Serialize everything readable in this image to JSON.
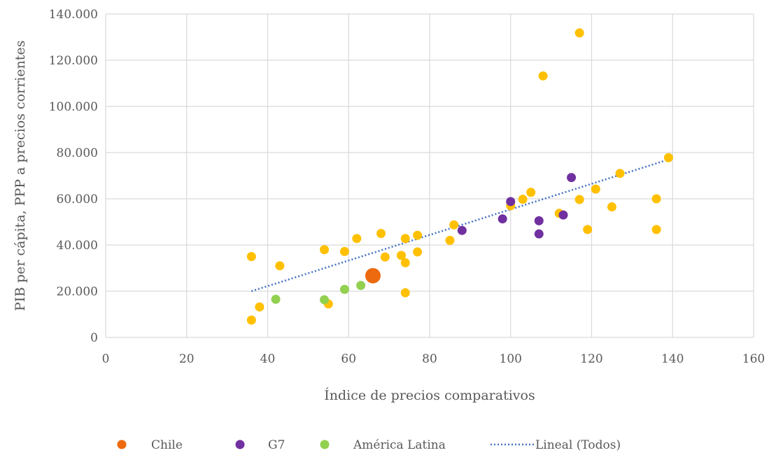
{
  "chart_data": {
    "type": "scatter",
    "title": "",
    "xlabel": "Índice de precios comparativos",
    "ylabel": "PIB per cápita, PPP a precios corrientes",
    "xlim": [
      0,
      160
    ],
    "ylim": [
      0,
      140000
    ],
    "x_ticks": [
      0,
      20,
      40,
      60,
      80,
      100,
      120,
      140,
      160
    ],
    "x_tick_labels": [
      "0",
      "20",
      "40",
      "60",
      "80",
      "100",
      "120",
      "140",
      "160"
    ],
    "y_ticks": [
      0,
      20000,
      40000,
      60000,
      80000,
      100000,
      120000,
      140000
    ],
    "y_tick_labels": [
      "0",
      "20.000",
      "40.000",
      "60.000",
      "80.000",
      "100.000",
      "120.000",
      "140.000"
    ],
    "grid": true,
    "legend_position": "bottom",
    "colors": {
      "todos": "#FFC000",
      "chile": "#ED6A0E",
      "g7": "#7030A0",
      "latam": "#92D050",
      "trend": "#4472C4"
    },
    "series": [
      {
        "key": "todos",
        "name": "",
        "color": "#FFC000",
        "points": [
          [
            36,
            35000
          ],
          [
            36,
            7500
          ],
          [
            38,
            13200
          ],
          [
            43,
            31000
          ],
          [
            54,
            38000
          ],
          [
            55,
            14500
          ],
          [
            59,
            37200
          ],
          [
            62,
            42800
          ],
          [
            68,
            45000
          ],
          [
            69,
            34800
          ],
          [
            73,
            35500
          ],
          [
            74,
            42800
          ],
          [
            74,
            32300
          ],
          [
            74,
            19300
          ],
          [
            77,
            44200
          ],
          [
            77,
            37000
          ],
          [
            85,
            42000
          ],
          [
            86,
            48700
          ],
          [
            100,
            57000
          ],
          [
            103,
            59800
          ],
          [
            105,
            62800
          ],
          [
            108,
            113200
          ],
          [
            112,
            53700
          ],
          [
            117,
            131800
          ],
          [
            117,
            59700
          ],
          [
            119,
            46700
          ],
          [
            121,
            64200
          ],
          [
            125,
            56500
          ],
          [
            127,
            71000
          ],
          [
            136,
            60000
          ],
          [
            136,
            46700
          ],
          [
            139,
            77800
          ]
        ]
      },
      {
        "key": "g7",
        "name": "G7",
        "color": "#7030A0",
        "points": [
          [
            88,
            46300
          ],
          [
            98,
            51300
          ],
          [
            100,
            58800
          ],
          [
            107,
            50500
          ],
          [
            107,
            44800
          ],
          [
            113,
            53000
          ],
          [
            115,
            69200
          ]
        ]
      },
      {
        "key": "latam",
        "name": "América Latina",
        "color": "#92D050",
        "points": [
          [
            42,
            16500
          ],
          [
            54,
            16300
          ],
          [
            59,
            20800
          ],
          [
            63,
            22500
          ]
        ]
      },
      {
        "key": "chile",
        "name": "Chile",
        "color": "#ED6A0E",
        "points": [
          [
            66,
            26700
          ]
        ]
      }
    ],
    "trendline": {
      "name": "Lineal (Todos)",
      "color": "#4472C4",
      "style": "dotted",
      "from": [
        36,
        20000
      ],
      "to": [
        139,
        77000
      ]
    }
  },
  "legend": {
    "items": [
      {
        "key": "chile",
        "label": "Chile",
        "color": "#ED6A0E",
        "icon": "circle-marker"
      },
      {
        "key": "g7",
        "label": "G7",
        "color": "#7030A0",
        "icon": "circle-marker"
      },
      {
        "key": "latam",
        "label": "América Latina",
        "color": "#92D050",
        "icon": "circle-marker"
      },
      {
        "key": "trend",
        "label": "Lineal (Todos)",
        "color": "#4472C4",
        "icon": "dotted-line"
      }
    ]
  }
}
